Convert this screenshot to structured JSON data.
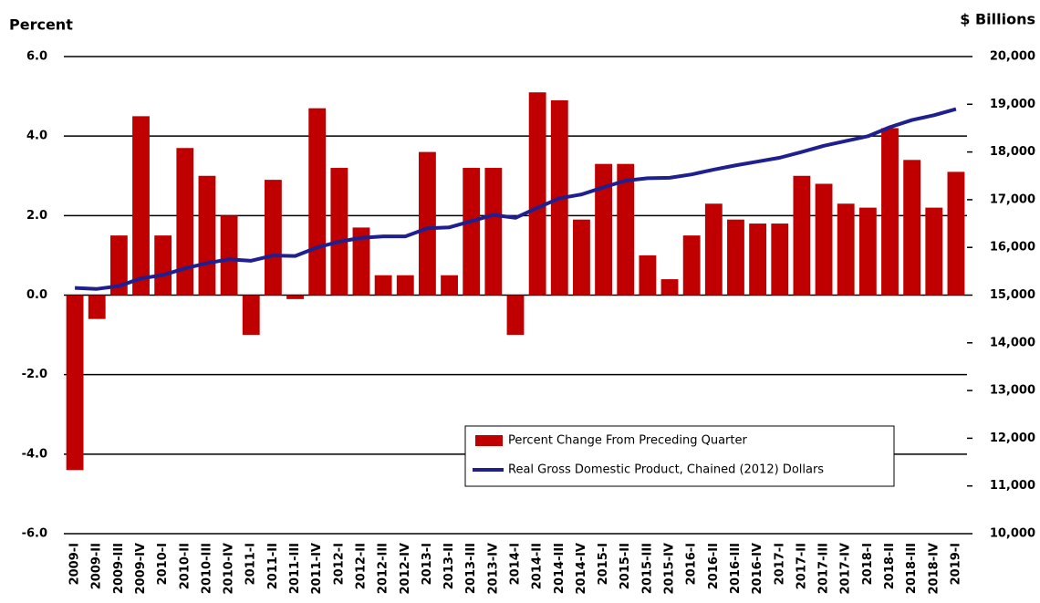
{
  "chart_data": {
    "type": "bar_line",
    "y_label": "Percent",
    "y2_label": "$ Billions",
    "categories": [
      "2009-I",
      "2009-II",
      "2009-III",
      "2009-IV",
      "2010-I",
      "2010-II",
      "2010-III",
      "2010-IV",
      "2011-I",
      "2011-II",
      "2011-III",
      "2011-IV",
      "2012-I",
      "2012-II",
      "2012-III",
      "2012-IV",
      "2013-I",
      "2013-II",
      "2013-III",
      "2013-IV",
      "2014-I",
      "2014-II",
      "2014-III",
      "2014-IV",
      "2015-I",
      "2015-II",
      "2015-III",
      "2015-IV",
      "2016-I",
      "2016-II",
      "2016-III",
      "2016-IV",
      "2017-I",
      "2017-II",
      "2017-III",
      "2017-IV",
      "2018-I",
      "2018-II",
      "2018-III",
      "2018-IV",
      "2019-I"
    ],
    "series": [
      {
        "name": "Percent Change From Preceding Quarter",
        "type": "bar",
        "color": "#c00000",
        "values": [
          -4.4,
          -0.6,
          1.5,
          4.5,
          1.5,
          3.7,
          3.0,
          2.0,
          -1.0,
          2.9,
          -0.1,
          4.7,
          3.2,
          1.7,
          0.5,
          0.5,
          3.6,
          0.5,
          3.2,
          3.2,
          -1.0,
          5.1,
          4.9,
          1.9,
          3.3,
          3.3,
          1.0,
          0.4,
          1.5,
          2.3,
          1.9,
          1.8,
          1.8,
          3.0,
          2.8,
          2.3,
          2.2,
          4.2,
          3.4,
          2.2,
          3.1
        ]
      },
      {
        "name": "Real Gross Domestic Product, Chained (2012) Dollars",
        "type": "line",
        "axis": "y2",
        "color": "#1f1f8f",
        "values": [
          15150,
          15130,
          15190,
          15350,
          15420,
          15560,
          15670,
          15750,
          15720,
          15830,
          15820,
          16000,
          16120,
          16200,
          16230,
          16230,
          16400,
          16420,
          16550,
          16680,
          16620,
          16830,
          17030,
          17110,
          17260,
          17400,
          17450,
          17460,
          17530,
          17630,
          17720,
          17800,
          17880,
          18000,
          18130,
          18230,
          18330,
          18520,
          18670,
          18770,
          18900
        ]
      }
    ],
    "ylim": [
      -6,
      6
    ],
    "yticks": [
      {
        "value": -6,
        "label": "-6.0"
      },
      {
        "value": -4,
        "label": "-4.0"
      },
      {
        "value": -2,
        "label": "-2.0"
      },
      {
        "value": 0,
        "label": "0.0"
      },
      {
        "value": 2,
        "label": "2.0"
      },
      {
        "value": 4,
        "label": "4.0"
      },
      {
        "value": 6,
        "label": "6.0"
      }
    ],
    "y2lim": [
      10000,
      20000
    ],
    "y2ticks": [
      {
        "value": 10000,
        "label": "10,000"
      },
      {
        "value": 11000,
        "label": "11,000"
      },
      {
        "value": 12000,
        "label": "12,000"
      },
      {
        "value": 13000,
        "label": "13,000"
      },
      {
        "value": 14000,
        "label": "14,000"
      },
      {
        "value": 15000,
        "label": "15,000"
      },
      {
        "value": 16000,
        "label": "16,000"
      },
      {
        "value": 17000,
        "label": "17,000"
      },
      {
        "value": 18000,
        "label": "18,000"
      },
      {
        "value": 19000,
        "label": "19,000"
      },
      {
        "value": 20000,
        "label": "20,000"
      }
    ],
    "grid": true
  }
}
